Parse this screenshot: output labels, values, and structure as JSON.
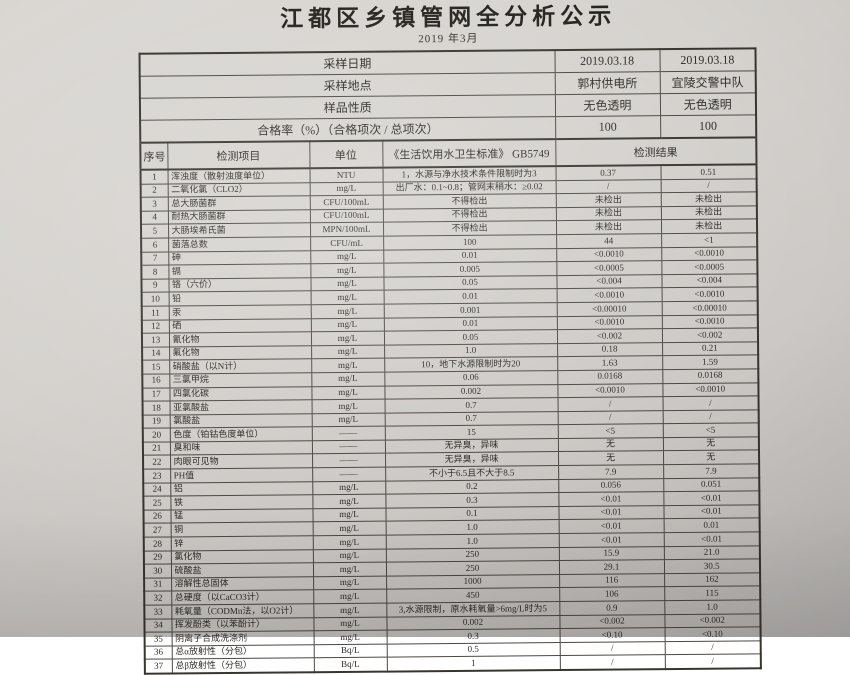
{
  "colors": {
    "paper": "#d3d0cc",
    "ink": "#2e2c29",
    "border": "#4c4842"
  },
  "title": "江都区乡镇管网全分析公示",
  "subtitle": "2019 年3月",
  "summary": {
    "rows": [
      {
        "label": "采样日期",
        "v1": "2019.03.18",
        "v2": "2019.03.18"
      },
      {
        "label": "采样地点",
        "v1": "郭村供电所",
        "v2": "宜陵交警中队"
      },
      {
        "label": "样品性质",
        "v1": "无色透明",
        "v2": "无色透明"
      },
      {
        "label": "合格率（%）（合格项次 / 总项次）",
        "v1": "100",
        "v2": "100"
      }
    ]
  },
  "table": {
    "headers": {
      "index": "序号",
      "item": "检测项目",
      "unit": "单位",
      "standard": "《生活饮用水卫生标准》 GB5749",
      "result": "检测结果"
    },
    "rows": [
      [
        "1",
        "浑浊度（散射浊度单位）",
        "NTU",
        "1，水源与净水技术条件限制时为3",
        "0.37",
        "0.51"
      ],
      [
        "2",
        "二氧化氯（CLO2）",
        "mg/L",
        "出厂水：0.1~0.8；管网末稍水：≥0.02",
        "/",
        "/"
      ],
      [
        "3",
        "总大肠菌群",
        "CFU/100mL",
        "不得检出",
        "未检出",
        "未检出"
      ],
      [
        "4",
        "耐热大肠菌群",
        "CFU/100mL",
        "不得检出",
        "未检出",
        "未检出"
      ],
      [
        "5",
        "大肠埃希氏菌",
        "MPN/100mL",
        "不得检出",
        "未检出",
        "未检出"
      ],
      [
        "6",
        "菌落总数",
        "CFU/mL",
        "100",
        "44",
        "<1"
      ],
      [
        "7",
        "砷",
        "mg/L",
        "0.01",
        "<0.0010",
        "<0.0010"
      ],
      [
        "8",
        "镉",
        "mg/L",
        "0.005",
        "<0.0005",
        "<0.0005"
      ],
      [
        "9",
        "铬（六价）",
        "mg/L",
        "0.05",
        "<0.004",
        "<0.004"
      ],
      [
        "10",
        "铅",
        "mg/L",
        "0.01",
        "<0.0010",
        "<0.0010"
      ],
      [
        "11",
        "汞",
        "mg/L",
        "0.001",
        "<0.00010",
        "<0.00010"
      ],
      [
        "12",
        "硒",
        "mg/L",
        "0.01",
        "<0.0010",
        "<0.0010"
      ],
      [
        "13",
        "氰化物",
        "mg/L",
        "0.05",
        "<0.002",
        "<0.002"
      ],
      [
        "14",
        "氟化物",
        "mg/L",
        "1.0",
        "0.18",
        "0.21"
      ],
      [
        "15",
        "硝酸盐（以N计）",
        "mg/L",
        "10，地下水源限制时为20",
        "1.63",
        "1.59"
      ],
      [
        "16",
        "三氯甲烷",
        "mg/L",
        "0.06",
        "0.0168",
        "0.0168"
      ],
      [
        "17",
        "四氯化碳",
        "mg/L",
        "0.002",
        "<0.0010",
        "<0.0010"
      ],
      [
        "18",
        "亚氯酸盐",
        "mg/L",
        "0.7",
        "/",
        "/"
      ],
      [
        "19",
        "氯酸盐",
        "mg/L",
        "0.7",
        "/",
        "/"
      ],
      [
        "20",
        "色度（铂钴色度单位）",
        "——",
        "15",
        "<5",
        "<5"
      ],
      [
        "21",
        "臭和味",
        "——",
        "无异臭，异味",
        "无",
        "无"
      ],
      [
        "22",
        "肉眼可见物",
        "——",
        "无异臭，异味",
        "无",
        "无"
      ],
      [
        "23",
        "PH值",
        "——",
        "不小于6.5且不大于8.5",
        "7.9",
        "7.9"
      ],
      [
        "24",
        "铝",
        "mg/L",
        "0.2",
        "0.056",
        "0.051"
      ],
      [
        "25",
        "铁",
        "mg/L",
        "0.3",
        "<0.01",
        "<0.01"
      ],
      [
        "26",
        "锰",
        "mg/L",
        "0.1",
        "<0.01",
        "<0.01"
      ],
      [
        "27",
        "铜",
        "mg/L",
        "1.0",
        "<0.01",
        "0.01"
      ],
      [
        "28",
        "锌",
        "mg/L",
        "1.0",
        "<0.01",
        "<0.01"
      ],
      [
        "29",
        "氯化物",
        "mg/L",
        "250",
        "15.9",
        "21.0"
      ],
      [
        "30",
        "硫酸盐",
        "mg/L",
        "250",
        "29.1",
        "30.5"
      ],
      [
        "31",
        "溶解性总固体",
        "mg/L",
        "1000",
        "116",
        "162"
      ],
      [
        "32",
        "总硬度（以CaCO3计）",
        "mg/L",
        "450",
        "106",
        "115"
      ],
      [
        "33",
        "耗氧量（CODMn法，以O2计）",
        "mg/L",
        "3,水源限制，原水耗氧量>6mg/L时为5",
        "0.9",
        "1.0"
      ],
      [
        "34",
        "挥发酚类（以苯酚计）",
        "mg/L",
        "0.002",
        "<0.002",
        "<0.002"
      ],
      [
        "35",
        "阴离子合成洗涤剂",
        "mg/L",
        "0.3",
        "<0.10",
        "<0.10"
      ],
      [
        "36",
        "总α放射性（分包）",
        "Bq/L",
        "0.5",
        "/",
        "/"
      ],
      [
        "37",
        "总β放射性（分包）",
        "Bq/L",
        "1",
        "/",
        "/"
      ]
    ]
  }
}
